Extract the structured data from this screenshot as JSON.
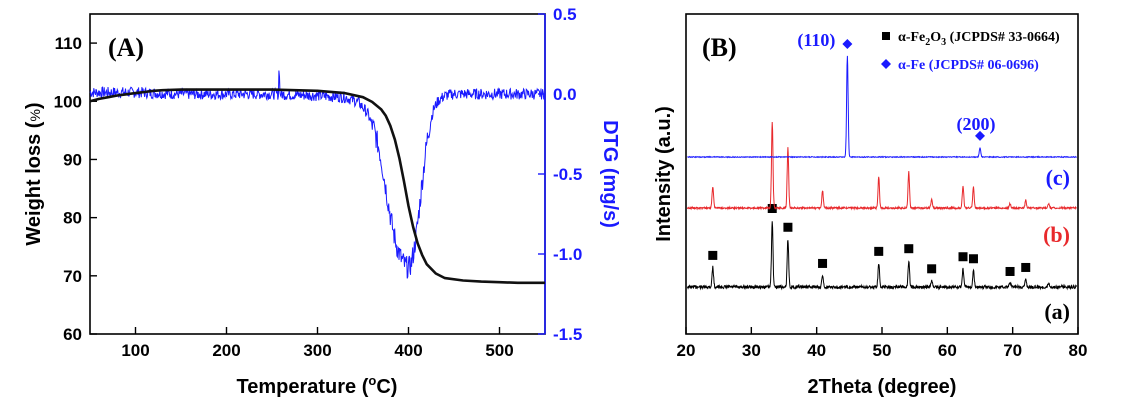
{
  "chart_data": [
    {
      "type": "line",
      "panel_label": "(A)",
      "xlabel": "Temperature (",
      "xlabel_unit_sup": "o",
      "xlabel_unit_tail": "C)",
      "ylabel": "Weight loss (",
      "ylabel_unit": "%",
      "ylabel_tail": ")",
      "y2label": "DTG (mg/s)",
      "xlim": [
        50,
        550
      ],
      "ylim": [
        60,
        115
      ],
      "y2lim": [
        -1.5,
        0.5
      ],
      "x_ticks": [
        "100",
        "200",
        "300",
        "400",
        "500"
      ],
      "y_ticks": [
        "60",
        "70",
        "80",
        "90",
        "100",
        "110"
      ],
      "y2_ticks": [
        "-1.5",
        "-1.0",
        "-0.5",
        "0.0",
        "0.5"
      ],
      "series": [
        {
          "name": "Weight loss",
          "axis": "left",
          "color": "#111111",
          "x": [
            50,
            60,
            70,
            80,
            90,
            100,
            110,
            120,
            130,
            150,
            200,
            250,
            300,
            330,
            350,
            360,
            370,
            375,
            380,
            385,
            390,
            395,
            400,
            405,
            410,
            415,
            420,
            430,
            440,
            460,
            480,
            500,
            520,
            550
          ],
          "y": [
            100.0,
            100.4,
            100.7,
            101.0,
            101.2,
            101.4,
            101.6,
            101.8,
            101.9,
            102.0,
            102.0,
            102.0,
            101.8,
            101.4,
            100.7,
            99.9,
            98.6,
            97.5,
            95.8,
            93.4,
            90.2,
            86.3,
            82.0,
            78.4,
            75.6,
            73.6,
            72.0,
            70.4,
            69.6,
            69.2,
            69.0,
            68.9,
            68.8,
            68.8
          ]
        },
        {
          "name": "DTG",
          "axis": "right",
          "color": "#1a1aff",
          "x": [
            50,
            100,
            150,
            200,
            250,
            300,
            330,
            345,
            355,
            362,
            368,
            372,
            376,
            380,
            384,
            388,
            392,
            396,
            400,
            403,
            406,
            409,
            412,
            415,
            418,
            421,
            424,
            428,
            433,
            440,
            450,
            470,
            500,
            550
          ],
          "y": [
            0.01,
            0.01,
            0.0,
            0.0,
            0.0,
            -0.01,
            -0.02,
            -0.05,
            -0.12,
            -0.22,
            -0.35,
            -0.48,
            -0.62,
            -0.76,
            -0.88,
            -0.97,
            -1.03,
            -1.07,
            -1.09,
            -1.06,
            -0.98,
            -0.86,
            -0.71,
            -0.55,
            -0.4,
            -0.27,
            -0.17,
            -0.09,
            -0.04,
            -0.01,
            0.0,
            0.0,
            0.0,
            0.0
          ]
        }
      ]
    },
    {
      "type": "line",
      "panel_label": "(B)",
      "xlabel": "2Theta (degree)",
      "ylabel": "Intensity (a.u.)",
      "xlim": [
        20,
        80
      ],
      "x_ticks": [
        "20",
        "30",
        "40",
        "50",
        "60",
        "70",
        "80"
      ],
      "legend": [
        {
          "marker": "square",
          "color": "#000000",
          "text": "α-Fe",
          "sub1": "2",
          "mid": "O",
          "sub2": "3",
          "tail": " (JCPDS# 33-0664)"
        },
        {
          "marker": "diamond",
          "color": "#1a1aff",
          "text": "α-Fe (JCPDS# 06-0696)"
        }
      ],
      "curves": [
        {
          "name": "(a)",
          "color": "#000000",
          "peaks": [
            {
              "x": 24.1,
              "h": 0.3
            },
            {
              "x": 33.2,
              "h": 1.0
            },
            {
              "x": 35.6,
              "h": 0.72
            },
            {
              "x": 40.9,
              "h": 0.18
            },
            {
              "x": 49.5,
              "h": 0.36
            },
            {
              "x": 54.1,
              "h": 0.4
            },
            {
              "x": 57.6,
              "h": 0.1
            },
            {
              "x": 62.4,
              "h": 0.28
            },
            {
              "x": 64.0,
              "h": 0.25
            },
            {
              "x": 69.6,
              "h": 0.06
            },
            {
              "x": 72.0,
              "h": 0.12
            },
            {
              "x": 75.5,
              "h": 0.06
            }
          ],
          "markers": [
            24.1,
            33.2,
            35.6,
            40.9,
            49.5,
            54.1,
            57.6,
            62.4,
            64.0,
            69.6,
            72.0
          ]
        },
        {
          "name": "(b)",
          "color": "#e8292c",
          "peaks": [
            {
              "x": 24.1,
              "h": 0.25
            },
            {
              "x": 33.2,
              "h": 1.0
            },
            {
              "x": 35.6,
              "h": 0.7
            },
            {
              "x": 40.9,
              "h": 0.2
            },
            {
              "x": 49.5,
              "h": 0.36
            },
            {
              "x": 54.1,
              "h": 0.42
            },
            {
              "x": 57.6,
              "h": 0.1
            },
            {
              "x": 62.4,
              "h": 0.26
            },
            {
              "x": 64.0,
              "h": 0.24
            },
            {
              "x": 69.6,
              "h": 0.05
            },
            {
              "x": 72.0,
              "h": 0.09
            },
            {
              "x": 75.5,
              "h": 0.05
            }
          ]
        },
        {
          "name": "(c)",
          "color": "#1a1aff",
          "peaks": [
            {
              "x": 44.7,
              "h": 1.0
            },
            {
              "x": 65.0,
              "h": 0.09
            }
          ],
          "markers": [
            44.7,
            65.0
          ],
          "peak_labels": [
            {
              "x": 44.7,
              "text": "(110)"
            },
            {
              "x": 65.0,
              "text": "(200)"
            }
          ]
        }
      ]
    }
  ]
}
